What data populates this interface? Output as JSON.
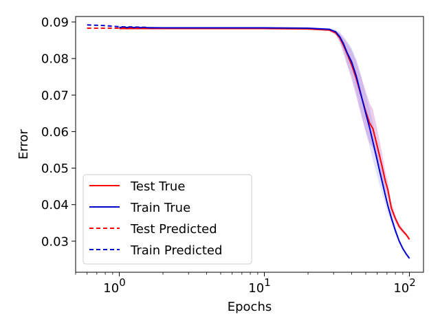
{
  "chart_data": {
    "type": "line",
    "title": "",
    "xlabel": "Epochs",
    "ylabel": "Error",
    "xscale": "log",
    "xlim": [
      0.5,
      125
    ],
    "ylim": [
      0.0215,
      0.0915
    ],
    "yticks": [
      0.03,
      0.04,
      0.05,
      0.06,
      0.07,
      0.08,
      0.09
    ],
    "ytick_labels": [
      "0.03",
      "0.04",
      "0.05",
      "0.06",
      "0.07",
      "0.08",
      "0.09"
    ],
    "xticks": [
      1,
      10,
      100
    ],
    "xtick_labels": [
      {
        "base": "10",
        "exp": "0"
      },
      {
        "base": "10",
        "exp": "1"
      },
      {
        "base": "10",
        "exp": "2"
      }
    ],
    "grid": false,
    "legend_position": "lower-left",
    "series": [
      {
        "name": "Test True",
        "color": "#ff0000",
        "style": "solid",
        "x": [
          1,
          2,
          5,
          10,
          20,
          28,
          31,
          33,
          35,
          37,
          40,
          43,
          46,
          50,
          53,
          56,
          59,
          62,
          65,
          68,
          71,
          75,
          80,
          85,
          90,
          95,
          100
        ],
        "y": [
          0.0882,
          0.0882,
          0.0882,
          0.0882,
          0.0881,
          0.0878,
          0.087,
          0.0857,
          0.0837,
          0.0815,
          0.0782,
          0.0745,
          0.0704,
          0.0655,
          0.0624,
          0.0608,
          0.0572,
          0.0537,
          0.0502,
          0.0467,
          0.044,
          0.0391,
          0.0362,
          0.034,
          0.0328,
          0.0318,
          0.0305
        ],
        "band": [
          0.0002,
          0.0002,
          0.0002,
          0.0002,
          0.0002,
          0.0003,
          0.0006,
          0.0012,
          0.002,
          0.003,
          0.004,
          0.0048,
          0.0053,
          0.0055,
          0.0055,
          0.0053,
          0.0048,
          0.0042,
          0.0035,
          0.0028,
          0.0022,
          0.0015,
          0.001,
          0.0008,
          0.0006,
          0.0005,
          0.0005
        ]
      },
      {
        "name": "Train True",
        "color": "#0000cd",
        "style": "solid",
        "x": [
          1,
          2,
          5,
          10,
          20,
          28,
          31,
          33,
          35,
          37,
          40,
          43,
          46,
          50,
          53,
          56,
          59,
          62,
          65,
          68,
          71,
          75,
          80,
          85,
          90,
          95,
          100
        ],
        "y": [
          0.0885,
          0.0884,
          0.0884,
          0.0884,
          0.0883,
          0.088,
          0.0873,
          0.086,
          0.0842,
          0.0818,
          0.079,
          0.0752,
          0.0706,
          0.065,
          0.0612,
          0.0572,
          0.0534,
          0.0496,
          0.0461,
          0.0428,
          0.0397,
          0.0364,
          0.0329,
          0.03,
          0.028,
          0.0265,
          0.0253
        ],
        "band": [
          0.0002,
          0.0002,
          0.0002,
          0.0002,
          0.0002,
          0.0003,
          0.0006,
          0.0012,
          0.002,
          0.003,
          0.0038,
          0.0046,
          0.005,
          0.0052,
          0.0052,
          0.005,
          0.0045,
          0.004,
          0.0033,
          0.0026,
          0.002,
          0.0014,
          0.0009,
          0.0006,
          0.0005,
          0.0004,
          0.0004
        ]
      },
      {
        "name": "Test Predicted",
        "color": "#ff0000",
        "style": "dashed",
        "x": [
          0.6,
          1.0,
          1.6
        ],
        "y": [
          0.0883,
          0.0883,
          0.0883
        ]
      },
      {
        "name": "Train Predicted",
        "color": "#0000cd",
        "style": "dashed",
        "x": [
          0.6,
          0.8,
          1.0,
          1.3,
          1.6
        ],
        "y": [
          0.0892,
          0.089,
          0.0887,
          0.0886,
          0.0885
        ]
      }
    ]
  }
}
